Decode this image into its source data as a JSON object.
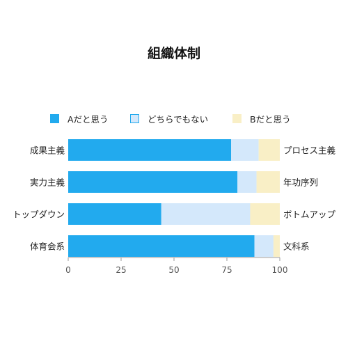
{
  "chart_data": {
    "type": "bar",
    "orientation": "horizontal",
    "stacked": true,
    "title": "組織体制",
    "categories_left": [
      "成果主義",
      "実力主義",
      "トップダウン",
      "体育会系"
    ],
    "categories_right": [
      "プロセス主義",
      "年功序列",
      "ボトムアップ",
      "文科系"
    ],
    "series": [
      {
        "name": "Aだと思う",
        "values": [
          77,
          80,
          44,
          88
        ],
        "color": "#22aaee"
      },
      {
        "name": "どちらでもない",
        "values": [
          13,
          9,
          42,
          9
        ],
        "color": "#d4e8fb",
        "stroke": "#22aaee"
      },
      {
        "name": "Bだと思う",
        "values": [
          10,
          11,
          14,
          3
        ],
        "color": "#f9efc6"
      }
    ],
    "xlim": [
      0,
      100
    ],
    "xticks": [
      "0",
      "25",
      "50",
      "75",
      "100"
    ],
    "legend_position": "top",
    "grid": false
  }
}
